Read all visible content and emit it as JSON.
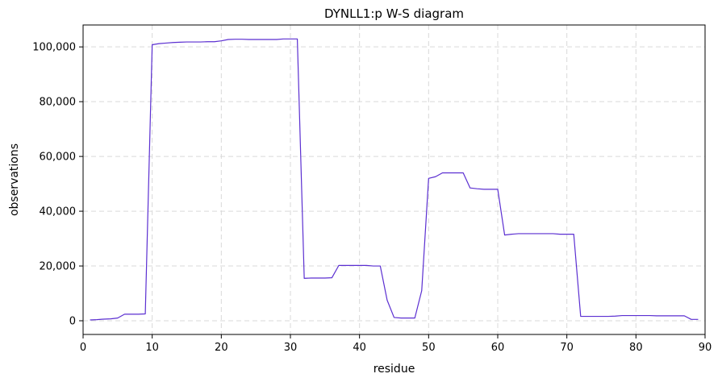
{
  "chart_data": {
    "type": "line",
    "title": "DYNLL1:p W-S diagram",
    "xlabel": "residue",
    "ylabel": "observations",
    "xlim": [
      0,
      90
    ],
    "ylim": [
      -5000,
      108000
    ],
    "xticks": [
      0,
      10,
      20,
      30,
      40,
      50,
      60,
      70,
      80,
      90
    ],
    "xtick_labels": [
      "0",
      "10",
      "20",
      "30",
      "40",
      "50",
      "60",
      "70",
      "80",
      "90"
    ],
    "yticks": [
      0,
      20000,
      40000,
      60000,
      80000,
      100000
    ],
    "ytick_labels": [
      "0",
      "20,000",
      "40,000",
      "60,000",
      "80,000",
      "100,000"
    ],
    "grid": true,
    "line_color": "#5b2fd1",
    "series": [
      {
        "x": [
          1,
          2,
          3,
          4,
          5,
          6,
          7,
          8,
          9,
          10,
          11,
          12,
          13,
          14,
          15,
          16,
          17,
          18,
          19,
          20,
          21,
          22,
          23,
          24,
          25,
          26,
          27,
          28,
          29,
          30,
          31,
          32,
          33,
          34,
          35,
          36,
          37,
          38,
          39,
          40,
          41,
          42,
          43,
          44,
          45,
          46,
          47,
          48,
          49,
          50,
          51,
          52,
          53,
          54,
          55,
          56,
          57,
          58,
          59,
          60,
          61,
          62,
          63,
          64,
          65,
          66,
          67,
          68,
          69,
          70,
          71,
          72,
          73,
          74,
          75,
          76,
          77,
          78,
          79,
          80,
          81,
          82,
          83,
          84,
          85,
          86,
          87,
          88,
          89
        ],
        "y": [
          300,
          400,
          600,
          700,
          1000,
          2400,
          2400,
          2400,
          2500,
          100800,
          101200,
          101400,
          101600,
          101700,
          101800,
          101800,
          101800,
          101900,
          101900,
          102200,
          102700,
          102800,
          102800,
          102700,
          102700,
          102700,
          102700,
          102700,
          102900,
          102900,
          102900,
          15500,
          15600,
          15600,
          15600,
          15700,
          20200,
          20200,
          20200,
          20200,
          20200,
          20000,
          20000,
          7500,
          1200,
          1000,
          1000,
          1000,
          11000,
          52000,
          52600,
          54000,
          54000,
          54000,
          54000,
          48500,
          48200,
          48000,
          48000,
          48000,
          31300,
          31600,
          31800,
          31800,
          31800,
          31800,
          31800,
          31800,
          31600,
          31600,
          31600,
          1600,
          1600,
          1600,
          1600,
          1600,
          1700,
          1900,
          1900,
          1900,
          1900,
          1900,
          1800,
          1800,
          1800,
          1800,
          1800,
          500,
          500
        ]
      }
    ]
  }
}
